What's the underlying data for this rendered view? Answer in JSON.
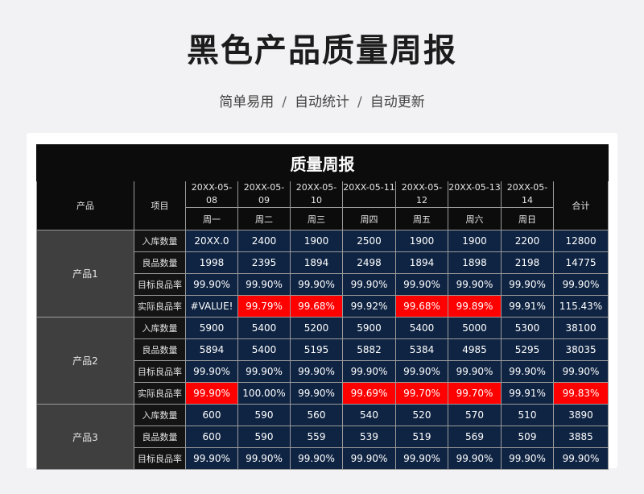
{
  "header": {
    "title": "黑色产品质量周报",
    "subtitle_parts": [
      "简单易用",
      "/",
      "自动统计",
      "/",
      "自动更新"
    ]
  },
  "table": {
    "title": "质量周报",
    "col_product": "产品",
    "col_item": "项目",
    "col_total": "合计",
    "dates": [
      "20XX-05-08",
      "20XX-05-09",
      "20XX-05-10",
      "20XX-05-11",
      "20XX-05-12",
      "20XX-05-13",
      "20XX-05-14"
    ],
    "weekdays": [
      "周一",
      "周二",
      "周三",
      "周四",
      "周五",
      "周六",
      "周日"
    ],
    "groups": [
      {
        "product": "产品1",
        "rows": [
          {
            "item": "入库数量",
            "cells": [
              "20XX.0",
              "2400",
              "1900",
              "2500",
              "1900",
              "1900",
              "2200",
              "12800"
            ]
          },
          {
            "item": "良品数量",
            "cells": [
              "1998",
              "2395",
              "1894",
              "2498",
              "1894",
              "1898",
              "2198",
              "14775"
            ]
          },
          {
            "item": "目标良品率",
            "cells": [
              "99.90%",
              "99.90%",
              "99.90%",
              "99.90%",
              "99.90%",
              "99.90%",
              "99.90%",
              "99.90%"
            ]
          },
          {
            "item": "实际良品率",
            "cells": [
              "#VALUE!",
              "99.79%",
              "99.68%",
              "99.92%",
              "99.68%",
              "99.89%",
              "99.91%",
              "115.43%"
            ]
          }
        ]
      },
      {
        "product": "产品2",
        "rows": [
          {
            "item": "入库数量",
            "cells": [
              "5900",
              "5400",
              "5200",
              "5900",
              "5400",
              "5000",
              "5300",
              "38100"
            ]
          },
          {
            "item": "良品数量",
            "cells": [
              "5894",
              "5400",
              "5195",
              "5882",
              "5384",
              "4985",
              "5295",
              "38035"
            ]
          },
          {
            "item": "目标良品率",
            "cells": [
              "99.90%",
              "99.90%",
              "99.90%",
              "99.90%",
              "99.90%",
              "99.90%",
              "99.90%",
              "99.90%"
            ]
          },
          {
            "item": "实际良品率",
            "cells": [
              "99.90%",
              "100.00%",
              "99.90%",
              "99.69%",
              "99.70%",
              "99.70%",
              "99.91%",
              "99.83%"
            ]
          }
        ]
      },
      {
        "product": "产品3",
        "rows": [
          {
            "item": "入库数量",
            "cells": [
              "600",
              "590",
              "560",
              "540",
              "520",
              "570",
              "510",
              "3890"
            ]
          },
          {
            "item": "良品数量",
            "cells": [
              "600",
              "590",
              "559",
              "539",
              "519",
              "569",
              "509",
              "3885"
            ]
          },
          {
            "item": "目标良品率",
            "cells": [
              "99.90%",
              "99.90%",
              "99.90%",
              "99.90%",
              "99.90%",
              "99.90%",
              "99.90%",
              "99.90%"
            ]
          }
        ]
      }
    ],
    "highlight": [
      [
        [],
        [],
        [],
        [
          1,
          2,
          4,
          5
        ]
      ],
      [
        [],
        [],
        [],
        [
          0,
          3,
          4,
          5,
          7
        ]
      ],
      [
        [],
        [],
        []
      ]
    ],
    "colors": {
      "title_bg": "#0c0c0c",
      "product_bg": "#3f3f3f",
      "item_bg": "#141414",
      "value_bg": "#0f2443",
      "alert": "#ff0000"
    }
  }
}
